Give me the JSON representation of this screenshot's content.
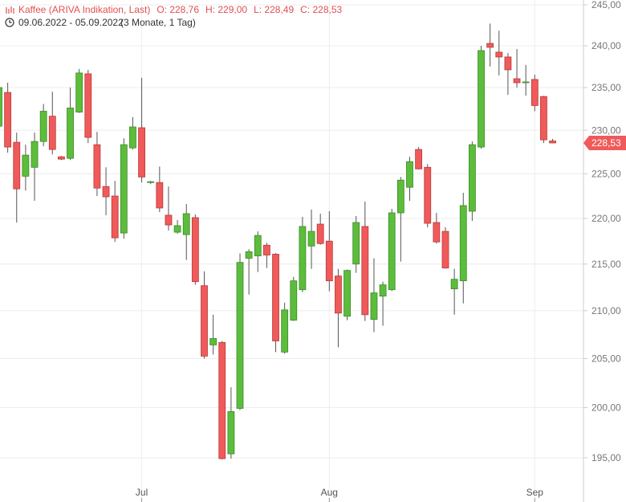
{
  "chart_data": {
    "type": "candlestick",
    "title": "Kaffee (ARIVA Indikation, Last)",
    "legend_values": [
      "O: 228,76",
      "H: 229,00",
      "L: 228,49",
      "C: 228,53"
    ],
    "date_range": "09.06.2022 - 05.09.2022",
    "period": "(3 Monate, 1 Tag)",
    "scale": "log",
    "grid": true,
    "up_color": "#5cbd3c",
    "down_color": "#f05a5a",
    "categories": [
      null,
      null,
      null,
      null,
      null,
      null,
      null,
      null,
      null,
      null,
      null,
      null,
      null,
      null,
      null,
      null,
      "Jul",
      null,
      null,
      null,
      null,
      null,
      null,
      null,
      null,
      null,
      null,
      null,
      null,
      null,
      null,
      null,
      null,
      null,
      null,
      null,
      null,
      "Aug",
      null,
      null,
      null,
      null,
      null,
      null,
      null,
      null,
      null,
      null,
      null,
      null,
      null,
      null,
      null,
      null,
      null,
      null,
      null,
      null,
      null,
      null,
      "Sep",
      null,
      null
    ],
    "open": [
      230.47,
      234.42,
      228.61,
      224.73,
      225.74,
      228.7,
      231.63,
      226.94,
      226.76,
      232.11,
      236.63,
      228.33,
      223.57,
      222.5,
      218.39,
      227.96,
      230.29,
      224.02,
      224.02,
      220.36,
      218.48,
      218.21,
      220.09,
      212.67,
      206.42,
      206.67,
      195.39,
      199.92,
      215.63,
      215.89,
      217.05,
      216.07,
      205.67,
      209.0,
      212.24,
      216.96,
      219.37,
      217.5,
      213.71,
      209.42,
      215.0,
      219.11,
      209.08,
      211.55,
      212.24,
      220.62,
      223.48,
      227.78,
      225.74,
      219.55,
      218.57,
      212.33,
      213.19,
      220.8,
      228.06,
      240.29,
      239.23,
      238.65,
      236.05,
      235.57,
      235.96,
      233.94,
      228.76
    ],
    "high": [
      235.48,
      235.57,
      229.72,
      228.33,
      229.72,
      233.07,
      234.51,
      227.04,
      235.0,
      237.21,
      237.11,
      229.81,
      225.74,
      224.2,
      229.07,
      231.53,
      236.15,
      224.2,
      225.83,
      223.57,
      219.82,
      221.61,
      220.45,
      214.22,
      209.58,
      206.83,
      202.05,
      216.16,
      216.61,
      218.57,
      217.32,
      216.2,
      210.86,
      213.62,
      220.18,
      220.98,
      220.53,
      220.8,
      214.48,
      214.4,
      220.27,
      221.87,
      215.63,
      213.1,
      221.07,
      224.64,
      226.94,
      228.06,
      226.11,
      220.62,
      219.02,
      214.48,
      222.86,
      228.7,
      240.0,
      242.69,
      241.83,
      239.13,
      239.61,
      237.69,
      236.53,
      234.03,
      229.0
    ],
    "low": [
      230.19,
      227.41,
      219.55,
      223.12,
      221.96,
      228.15,
      227.22,
      226.57,
      226.57,
      232.01,
      228.52,
      222.5,
      220.36,
      217.41,
      217.77,
      227.78,
      224.02,
      223.84,
      220.71,
      218.66,
      218.3,
      215.45,
      212.76,
      205.0,
      205.42,
      194.84,
      194.92,
      199.76,
      211.72,
      214.14,
      214.57,
      205.67,
      205.5,
      208.92,
      211.98,
      214.48,
      217.1,
      212.07,
      206.17,
      209.0,
      214.05,
      208.92,
      207.75,
      208.42,
      212.1,
      215.27,
      221.96,
      225.5,
      219.02,
      217.23,
      214.5,
      209.58,
      210.78,
      219.73,
      227.87,
      237.5,
      236.44,
      234.13,
      235.0,
      234.03,
      232.21,
      228.52,
      228.49
    ],
    "close": [
      235.0,
      228.06,
      223.3,
      227.13,
      228.7,
      232.21,
      227.78,
      226.67,
      232.59,
      236.73,
      229.17,
      223.39,
      222.41,
      217.86,
      228.33,
      230.38,
      224.64,
      224.11,
      221.16,
      219.28,
      219.2,
      220.53,
      213.1,
      205.25,
      207.08,
      194.92,
      199.6,
      215.18,
      216.34,
      218.12,
      215.98,
      206.83,
      210.09,
      213.19,
      219.11,
      218.57,
      217.23,
      213.19,
      209.75,
      214.31,
      219.55,
      209.58,
      211.9,
      212.76,
      220.62,
      224.29,
      226.39,
      225.56,
      219.46,
      217.41,
      214.57,
      213.36,
      221.43,
      228.33,
      239.42,
      239.81,
      238.65,
      237.11,
      235.57,
      235.67,
      232.88,
      228.89,
      228.53
    ],
    "ylim": [
      245.6,
      192.8
    ],
    "yticks": [
      {
        "value": 245,
        "label": "245,00"
      },
      {
        "value": 240,
        "label": "240,00"
      },
      {
        "value": 235,
        "label": "235,00"
      },
      {
        "value": 230,
        "label": "230,00"
      },
      {
        "value": 225,
        "label": "225,00"
      },
      {
        "value": 220,
        "label": "220,00"
      },
      {
        "value": 215,
        "label": "215,00"
      },
      {
        "value": 210,
        "label": "210,00"
      },
      {
        "value": 205,
        "label": "205,00"
      },
      {
        "value": 200,
        "label": "200,00"
      },
      {
        "value": 195,
        "label": "195,00"
      }
    ],
    "last_label": {
      "value": 228.53,
      "label": "228,53"
    }
  }
}
